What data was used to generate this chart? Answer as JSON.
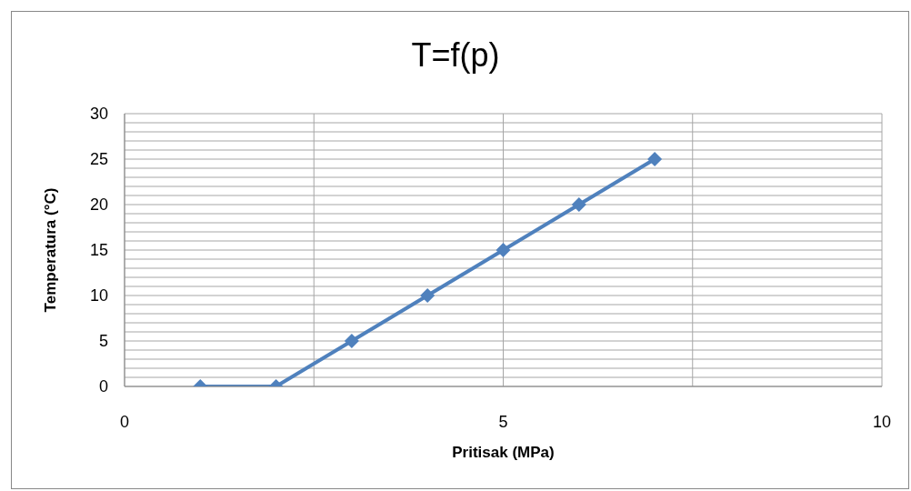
{
  "chart_data": {
    "type": "line",
    "title": "T=f(p)",
    "xlabel": "Pritisak (MPa)",
    "ylabel": "Temperatura (°C)",
    "x": [
      1,
      2,
      3,
      4,
      5,
      6,
      7
    ],
    "series": [
      {
        "color": "#4f81bd",
        "values": [
          0,
          0,
          5,
          10,
          15,
          20,
          25
        ]
      }
    ],
    "xlim": [
      0,
      10
    ],
    "xticks": [
      0,
      {
        "value": 2.5,
        "label": null
      },
      5,
      {
        "value": 7.5,
        "label": null
      },
      10
    ],
    "ylim": [
      0,
      30
    ],
    "yticks": [
      0,
      {
        "value": 1,
        "label": null
      },
      {
        "value": 2,
        "label": null
      },
      {
        "value": 3,
        "label": null
      },
      {
        "value": 4,
        "label": null
      },
      5,
      {
        "value": 6,
        "label": null
      },
      {
        "value": 7,
        "label": null
      },
      {
        "value": 8,
        "label": null
      },
      {
        "value": 9,
        "label": null
      },
      10,
      {
        "value": 11,
        "label": null
      },
      {
        "value": 12,
        "label": null
      },
      {
        "value": 13,
        "label": null
      },
      {
        "value": 14,
        "label": null
      },
      15,
      {
        "value": 16,
        "label": null
      },
      {
        "value": 17,
        "label": null
      },
      {
        "value": 18,
        "label": null
      },
      {
        "value": 19,
        "label": null
      },
      20,
      {
        "value": 21,
        "label": null
      },
      {
        "value": 22,
        "label": null
      },
      {
        "value": 23,
        "label": null
      },
      {
        "value": 24,
        "label": null
      },
      25,
      {
        "value": 26,
        "label": null
      },
      {
        "value": 27,
        "label": null
      },
      {
        "value": 28,
        "label": null
      },
      {
        "value": 29,
        "label": null
      },
      30
    ],
    "grid": true,
    "legend": false,
    "marker": "diamond",
    "line_style": "solid"
  }
}
